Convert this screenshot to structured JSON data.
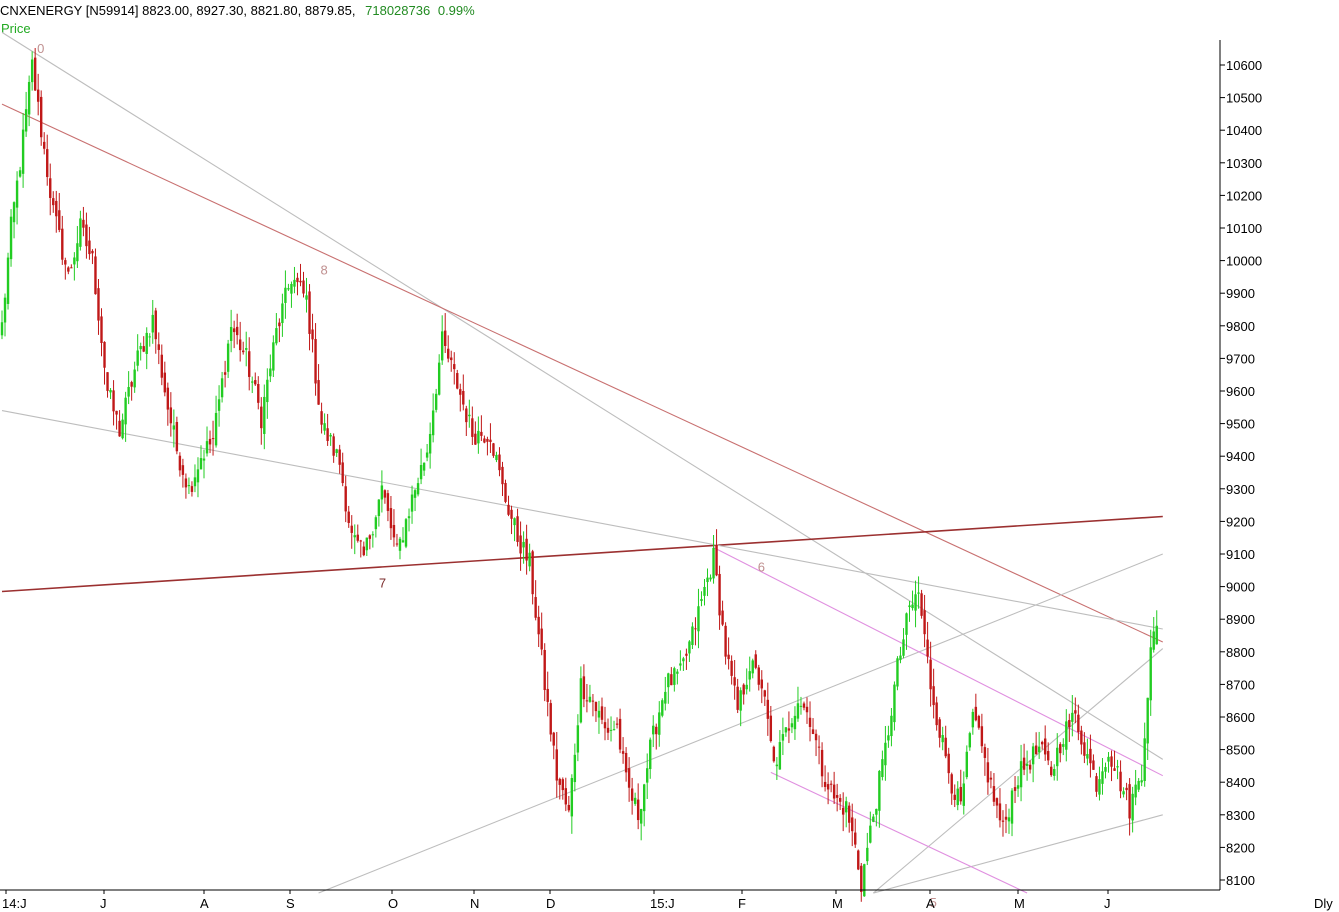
{
  "header": {
    "symbol": "CNXENERGY",
    "code": "[N59914]",
    "open": "8823.00",
    "high": "8927.30",
    "low": "8821.80",
    "close": "8879.85",
    "volume": "718028736",
    "change": "0.99%"
  },
  "panel_label": "Price",
  "period_label": "Dly",
  "colors": {
    "up": "#22cc22",
    "down": "#c01818",
    "axis": "#000000",
    "grey_line": "#bdbdbd",
    "red_trend": "#c87070",
    "dark_red_trend": "#9b3030",
    "pink_channel": "#e090e0",
    "wave_label": "#c09090"
  },
  "chart_data": {
    "type": "candlestick",
    "title": "",
    "y_axis_ticks": [
      10600,
      10500,
      10400,
      10300,
      10200,
      10100,
      10000,
      9900,
      9800,
      9700,
      9600,
      9500,
      9400,
      9300,
      9200,
      9100,
      9000,
      8900,
      8800,
      8700,
      8600,
      8500,
      8400,
      8300,
      8200,
      8100
    ],
    "x_axis_ticks": [
      "14:J",
      "J",
      "A",
      "S",
      "O",
      "N",
      "D",
      "15:J",
      "F",
      "M",
      "A",
      "M",
      "J"
    ],
    "ylim": [
      8050,
      10700
    ],
    "last_bar": {
      "open": 8823.0,
      "high": 8927.3,
      "low": 8821.8,
      "close": 8879.85
    },
    "wave_labels": [
      {
        "text": "0",
        "price": 10680
      },
      {
        "text": "8",
        "price": 10000
      },
      {
        "text": "7",
        "price": 9040
      },
      {
        "text": "6",
        "price": 9090
      },
      {
        "text": "5",
        "price": 8060
      }
    ],
    "waypoints": [
      [
        0,
        9800
      ],
      [
        3,
        10100
      ],
      [
        6,
        10300
      ],
      [
        10,
        10600
      ],
      [
        13,
        10400
      ],
      [
        17,
        10150
      ],
      [
        22,
        9950
      ],
      [
        26,
        10100
      ],
      [
        30,
        10000
      ],
      [
        35,
        9600
      ],
      [
        39,
        9480
      ],
      [
        45,
        9700
      ],
      [
        50,
        9820
      ],
      [
        55,
        9550
      ],
      [
        58,
        9420
      ],
      [
        62,
        9300
      ],
      [
        66,
        9400
      ],
      [
        70,
        9450
      ],
      [
        76,
        9800
      ],
      [
        81,
        9700
      ],
      [
        86,
        9520
      ],
      [
        91,
        9780
      ],
      [
        96,
        9950
      ],
      [
        101,
        9880
      ],
      [
        106,
        9500
      ],
      [
        112,
        9380
      ],
      [
        116,
        9150
      ],
      [
        120,
        9090
      ],
      [
        126,
        9300
      ],
      [
        131,
        9100
      ],
      [
        136,
        9270
      ],
      [
        141,
        9420
      ],
      [
        146,
        9750
      ],
      [
        151,
        9620
      ],
      [
        156,
        9470
      ],
      [
        162,
        9470
      ],
      [
        166,
        9300
      ],
      [
        171,
        9150
      ],
      [
        175,
        9070
      ],
      [
        180,
        8700
      ],
      [
        184,
        8420
      ],
      [
        188,
        8300
      ],
      [
        192,
        8700
      ],
      [
        196,
        8650
      ],
      [
        200,
        8560
      ],
      [
        204,
        8570
      ],
      [
        207,
        8400
      ],
      [
        211,
        8300
      ],
      [
        215,
        8500
      ],
      [
        220,
        8700
      ],
      [
        225,
        8730
      ],
      [
        229,
        8850
      ],
      [
        233,
        8990
      ],
      [
        236,
        9090
      ],
      [
        240,
        8800
      ],
      [
        244,
        8620
      ],
      [
        248,
        8760
      ],
      [
        252,
        8700
      ],
      [
        256,
        8450
      ],
      [
        260,
        8550
      ],
      [
        264,
        8660
      ],
      [
        268,
        8600
      ],
      [
        272,
        8440
      ],
      [
        276,
        8350
      ],
      [
        280,
        8320
      ],
      [
        283,
        8200
      ],
      [
        285,
        8090
      ],
      [
        289,
        8300
      ],
      [
        293,
        8500
      ],
      [
        297,
        8750
      ],
      [
        301,
        8930
      ],
      [
        304,
        8980
      ],
      [
        308,
        8700
      ],
      [
        311,
        8560
      ],
      [
        315,
        8400
      ],
      [
        318,
        8320
      ],
      [
        322,
        8600
      ],
      [
        325,
        8500
      ],
      [
        329,
        8350
      ],
      [
        332,
        8250
      ],
      [
        336,
        8400
      ],
      [
        340,
        8460
      ],
      [
        344,
        8500
      ],
      [
        348,
        8430
      ],
      [
        352,
        8550
      ],
      [
        356,
        8600
      ],
      [
        360,
        8480
      ],
      [
        363,
        8400
      ],
      [
        367,
        8500
      ],
      [
        371,
        8400
      ],
      [
        374,
        8320
      ],
      [
        378,
        8440
      ],
      [
        381,
        8800
      ],
      [
        383,
        8880
      ]
    ],
    "trendlines": [
      {
        "name": "grey-top",
        "color": "grey_line",
        "from": [
          0,
          10700
        ],
        "to": [
          385,
          8470
        ]
      },
      {
        "name": "red-long",
        "color": "red_trend",
        "from": [
          0,
          10480
        ],
        "to": [
          385,
          8830
        ]
      },
      {
        "name": "dark-red-up",
        "color": "dark_red_trend",
        "from": [
          0,
          8985
        ],
        "to": [
          385,
          9215
        ]
      },
      {
        "name": "grey-mid",
        "color": "grey_line",
        "from": [
          0,
          9540
        ],
        "to": [
          385,
          8870
        ]
      },
      {
        "name": "grey-steep",
        "color": "grey_line",
        "from": [
          105,
          8060
        ],
        "to": [
          385,
          9100
        ]
      },
      {
        "name": "grey-fan-1",
        "color": "grey_line",
        "from": [
          289,
          8060
        ],
        "to": [
          385,
          8810
        ]
      },
      {
        "name": "grey-fan-2",
        "color": "grey_line",
        "from": [
          289,
          8060
        ],
        "to": [
          385,
          8300
        ]
      },
      {
        "name": "pink-upper",
        "color": "pink_channel",
        "from": [
          236,
          9120
        ],
        "to": [
          385,
          8420
        ]
      },
      {
        "name": "pink-lower",
        "color": "pink_channel",
        "from": [
          255,
          8430
        ],
        "to": [
          340,
          8060
        ]
      }
    ]
  }
}
